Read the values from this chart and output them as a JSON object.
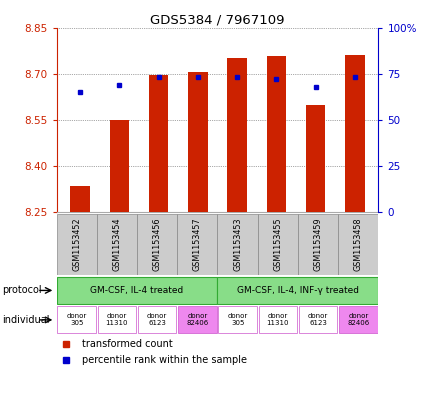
{
  "title": "GDS5384 / 7967109",
  "samples": [
    "GSM1153452",
    "GSM1153454",
    "GSM1153456",
    "GSM1153457",
    "GSM1153453",
    "GSM1153455",
    "GSM1153459",
    "GSM1153458"
  ],
  "red_values": [
    8.335,
    8.548,
    8.695,
    8.705,
    8.752,
    8.758,
    8.598,
    8.762
  ],
  "blue_values": [
    65,
    69,
    73,
    73,
    73,
    72,
    68,
    73
  ],
  "ylim_left": [
    8.25,
    8.85
  ],
  "ylim_right": [
    0,
    100
  ],
  "yticks_left": [
    8.25,
    8.4,
    8.55,
    8.7,
    8.85
  ],
  "yticks_right": [
    0,
    25,
    50,
    75,
    100
  ],
  "ytick_labels_right": [
    "0",
    "25",
    "50",
    "75",
    "100%"
  ],
  "bar_color": "#cc2200",
  "square_color": "#0000cc",
  "protocol_labels": [
    "GM-CSF, IL-4 treated",
    "GM-CSF, IL-4, INF-γ treated"
  ],
  "protocol_color": "#88dd88",
  "individual_labels": [
    "donor\n305",
    "donor\n11310",
    "donor\n6123",
    "donor\n82406",
    "donor\n305",
    "donor\n11310",
    "donor\n6123",
    "donor\n82406"
  ],
  "individual_colors": [
    "#ffffff",
    "#ffffff",
    "#ffffff",
    "#ee88ee",
    "#ffffff",
    "#ffffff",
    "#ffffff",
    "#ee88ee"
  ],
  "bar_width": 0.5,
  "baseline": 8.25,
  "bg_color": "#ffffff",
  "left_tick_color": "#cc2200",
  "right_tick_color": "#0000cc",
  "sample_bg": "#cccccc",
  "grid_color": "#555555"
}
